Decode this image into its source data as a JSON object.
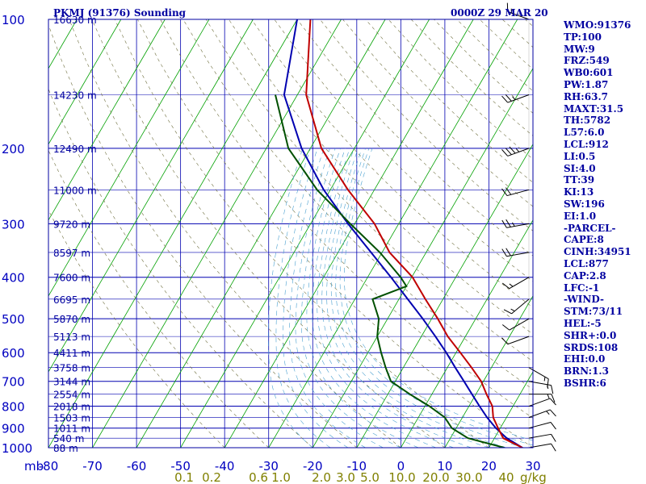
{
  "header": {
    "station": "PKMJ (91376) Sounding",
    "time": "0000Z 29 MAR 20"
  },
  "stats": [
    "WMO:91376",
    "TP:100",
    "MW:9",
    "FRZ:549",
    "WB0:601",
    "PW:1.87",
    "RH:63.7",
    "MAXT:31.5",
    "TH:5782",
    "L57:6.0",
    "LCL:912",
    "LI:0.5",
    "SI:4.0",
    "TT:39",
    "KI:13",
    "SW:196",
    "EI:1.0",
    "-PARCEL-",
    "CAPE:8",
    "CINH:34951",
    "LCL:877",
    "CAP:2.8",
    "LFC:-1",
    "-WIND-",
    "STM:73/11",
    "HEL:-5",
    "SHR+:0.0",
    "SRDS:108",
    "EHI:0.0",
    "BRN:1.3",
    "BSHR:6"
  ],
  "colors": {
    "frame": "#0000a0",
    "isobar": "#0000b0",
    "isotherm": "#00a000",
    "dry_adiabat": "#707040",
    "moist_adiabat": "#4aa0d0",
    "temperature": "#c00000",
    "dewpoint": "#005000",
    "parcel": "#0000b0",
    "wind": "#000000"
  },
  "chart_data": {
    "type": "skew-t",
    "title": "PKMJ (91376) Sounding",
    "pressure_axis": {
      "unit": "mb",
      "scale": "log",
      "range": [
        1000,
        100
      ],
      "ticks": [
        100,
        200,
        300,
        400,
        500,
        600,
        700,
        800,
        900,
        1000
      ]
    },
    "temperature_axis": {
      "range": [
        -80,
        30
      ],
      "ticks": [
        -80,
        -70,
        -60,
        -50,
        -40,
        -30,
        -20,
        -10,
        0,
        10,
        20,
        30
      ]
    },
    "mixing_ratio_axis": {
      "unit": "g/kg",
      "ticks": [
        "0.1",
        "0.2",
        "0.6",
        "1.0",
        "2.0",
        "3.0",
        "5.0",
        "10.0",
        "20.0",
        "30.0",
        "40"
      ]
    },
    "heights": [
      {
        "p": 100,
        "h": "16630 m"
      },
      {
        "p": 150,
        "h": "14230 m"
      },
      {
        "p": 200,
        "h": "12490 m"
      },
      {
        "p": 250,
        "h": "11000 m"
      },
      {
        "p": 300,
        "h": "9720 m"
      },
      {
        "p": 350,
        "h": "8597 m"
      },
      {
        "p": 400,
        "h": "7600 m"
      },
      {
        "p": 450,
        "h": "6695 m"
      },
      {
        "p": 500,
        "h": "5870 m"
      },
      {
        "p": 550,
        "h": "5113 m"
      },
      {
        "p": 600,
        "h": "4411 m"
      },
      {
        "p": 650,
        "h": "3758 m"
      },
      {
        "p": 700,
        "h": "3144 m"
      },
      {
        "p": 750,
        "h": "2554 m"
      },
      {
        "p": 800,
        "h": "2018 m"
      },
      {
        "p": 850,
        "h": "1503 m"
      },
      {
        "p": 900,
        "h": "1011 m"
      },
      {
        "p": 950,
        "h": "540 m"
      },
      {
        "p": 1000,
        "h": "88 m"
      }
    ],
    "temperature": [
      [
        1000,
        27.6
      ],
      [
        950,
        22.0
      ],
      [
        900,
        19.5
      ],
      [
        850,
        17.0
      ],
      [
        800,
        15.3
      ],
      [
        750,
        12.4
      ],
      [
        700,
        9.5
      ],
      [
        650,
        5.5
      ],
      [
        600,
        1.0
      ],
      [
        550,
        -4.0
      ],
      [
        500,
        -8.6
      ],
      [
        450,
        -14.0
      ],
      [
        400,
        -19.8
      ],
      [
        350,
        -28.3
      ],
      [
        300,
        -35.5
      ],
      [
        250,
        -46.0
      ],
      [
        200,
        -57.5
      ],
      [
        150,
        -68.0
      ],
      [
        100,
        -77.0
      ]
    ],
    "dewpoint": [
      [
        1000,
        23.5
      ],
      [
        950,
        14.0
      ],
      [
        900,
        9.0
      ],
      [
        850,
        6.0
      ],
      [
        800,
        1.0
      ],
      [
        750,
        -5.0
      ],
      [
        700,
        -11.0
      ],
      [
        650,
        -14.0
      ],
      [
        600,
        -17.0
      ],
      [
        550,
        -20.0
      ],
      [
        500,
        -22.0
      ],
      [
        450,
        -26.0
      ],
      [
        420,
        -20.0
      ],
      [
        400,
        -22.5
      ],
      [
        350,
        -30.5
      ],
      [
        300,
        -41.0
      ],
      [
        250,
        -53.0
      ],
      [
        200,
        -65.0
      ],
      [
        150,
        -75.0
      ]
    ],
    "parcel": [
      [
        1000,
        27.6
      ],
      [
        950,
        22.8
      ],
      [
        900,
        19.0
      ],
      [
        850,
        15.6
      ],
      [
        800,
        12.4
      ],
      [
        750,
        9.1
      ],
      [
        700,
        5.6
      ],
      [
        650,
        1.8
      ],
      [
        600,
        -2.2
      ],
      [
        550,
        -6.8
      ],
      [
        500,
        -12.0
      ],
      [
        450,
        -18.0
      ],
      [
        400,
        -24.7
      ],
      [
        350,
        -32.5
      ],
      [
        300,
        -41.5
      ],
      [
        250,
        -51.5
      ],
      [
        200,
        -62.0
      ],
      [
        150,
        -73.0
      ],
      [
        100,
        -80.0
      ]
    ],
    "wind_barbs": [
      {
        "p": 100,
        "dir": 290,
        "spd": 15
      },
      {
        "p": 150,
        "dir": 250,
        "spd": 25
      },
      {
        "p": 200,
        "dir": 250,
        "spd": 35
      },
      {
        "p": 250,
        "dir": 255,
        "spd": 20
      },
      {
        "p": 300,
        "dir": 260,
        "spd": 25
      },
      {
        "p": 350,
        "dir": 260,
        "spd": 20
      },
      {
        "p": 400,
        "dir": 240,
        "spd": 15
      },
      {
        "p": 450,
        "dir": 230,
        "spd": 15
      },
      {
        "p": 500,
        "dir": 240,
        "spd": 10
      },
      {
        "p": 550,
        "dir": 250,
        "spd": 10
      },
      {
        "p": 650,
        "dir": 120,
        "spd": 15
      },
      {
        "p": 700,
        "dir": 100,
        "spd": 15
      },
      {
        "p": 750,
        "dir": 90,
        "spd": 15
      },
      {
        "p": 800,
        "dir": 70,
        "spd": 10
      },
      {
        "p": 850,
        "dir": 70,
        "spd": 15
      },
      {
        "p": 900,
        "dir": 75,
        "spd": 10
      },
      {
        "p": 950,
        "dir": 80,
        "spd": 10
      },
      {
        "p": 1000,
        "dir": 80,
        "spd": 10
      }
    ]
  }
}
